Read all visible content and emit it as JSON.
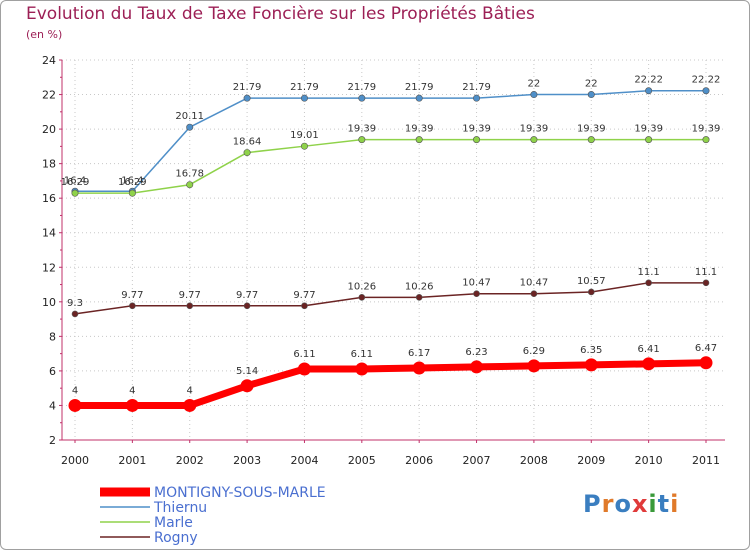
{
  "title": "Evolution du Taux de Taxe Foncière sur les Propriétés Bâties",
  "subtitle": "(en %)",
  "logo": {
    "text": "Proxiti",
    "letters": [
      "P",
      "r",
      "o",
      "x",
      "i",
      "t",
      "i"
    ]
  },
  "colors": {
    "montigny": "#ff0000",
    "thiernu": "#4f8fc8",
    "marle": "#8fd24a",
    "rogny": "#6b2424",
    "logo": [
      "#3a7ec0",
      "#e07a2a",
      "#3a7ec0",
      "#e03a3a",
      "#3a9a3a",
      "#3a7ec0",
      "#e07a2a"
    ]
  },
  "chart_data": {
    "type": "line",
    "title": "Evolution du Taux de Taxe Foncière sur les Propriétés Bâties",
    "ylabel": "(en %)",
    "xlabel": "",
    "ylim": [
      2,
      24
    ],
    "yticks": [
      2,
      4,
      6,
      8,
      10,
      12,
      14,
      16,
      18,
      20,
      22,
      24
    ],
    "x": [
      2000,
      2001,
      2002,
      2003,
      2004,
      2005,
      2006,
      2007,
      2008,
      2009,
      2010,
      2011
    ],
    "series": [
      {
        "key": "thiernu",
        "name": "Thiernu",
        "values": [
          16.4,
          16.4,
          20.11,
          21.79,
          21.79,
          21.79,
          21.79,
          21.79,
          22,
          22,
          22.22,
          22.22
        ],
        "labels": [
          "16.4",
          "16.4",
          "20.11",
          "21.79",
          "21.79",
          "21.79",
          "21.79",
          "21.79",
          "22",
          "22",
          "22.22",
          "22.22"
        ]
      },
      {
        "key": "marle",
        "name": "Marle",
        "values": [
          16.29,
          16.29,
          16.78,
          18.64,
          19.01,
          19.39,
          19.39,
          19.39,
          19.39,
          19.39,
          19.39,
          19.39
        ],
        "labels": [
          "16.29",
          "16.29",
          "16.78",
          "18.64",
          "19.01",
          "19.39",
          "19.39",
          "19.39",
          "19.39",
          "19.39",
          "19.39",
          "19.39"
        ]
      },
      {
        "key": "rogny",
        "name": "Rogny",
        "values": [
          9.3,
          9.77,
          9.77,
          9.77,
          9.77,
          10.26,
          10.26,
          10.47,
          10.47,
          10.57,
          11.1,
          11.1
        ],
        "labels": [
          "9.3",
          "9.77",
          "9.77",
          "9.77",
          "9.77",
          "10.26",
          "10.26",
          "10.47",
          "10.47",
          "10.57",
          "11.1",
          "11.1"
        ]
      },
      {
        "key": "montigny",
        "name": "MONTIGNY-SOUS-MARLE",
        "values": [
          4,
          4,
          4,
          5.14,
          6.11,
          6.11,
          6.17,
          6.23,
          6.29,
          6.35,
          6.41,
          6.47
        ],
        "labels": [
          "4",
          "4",
          "4",
          "5.14",
          "6.11",
          "6.11",
          "6.17",
          "6.23",
          "6.29",
          "6.35",
          "6.41",
          "6.47"
        ]
      }
    ],
    "legend": [
      "MONTIGNY-SOUS-MARLE",
      "Thiernu",
      "Marle",
      "Rogny"
    ]
  }
}
